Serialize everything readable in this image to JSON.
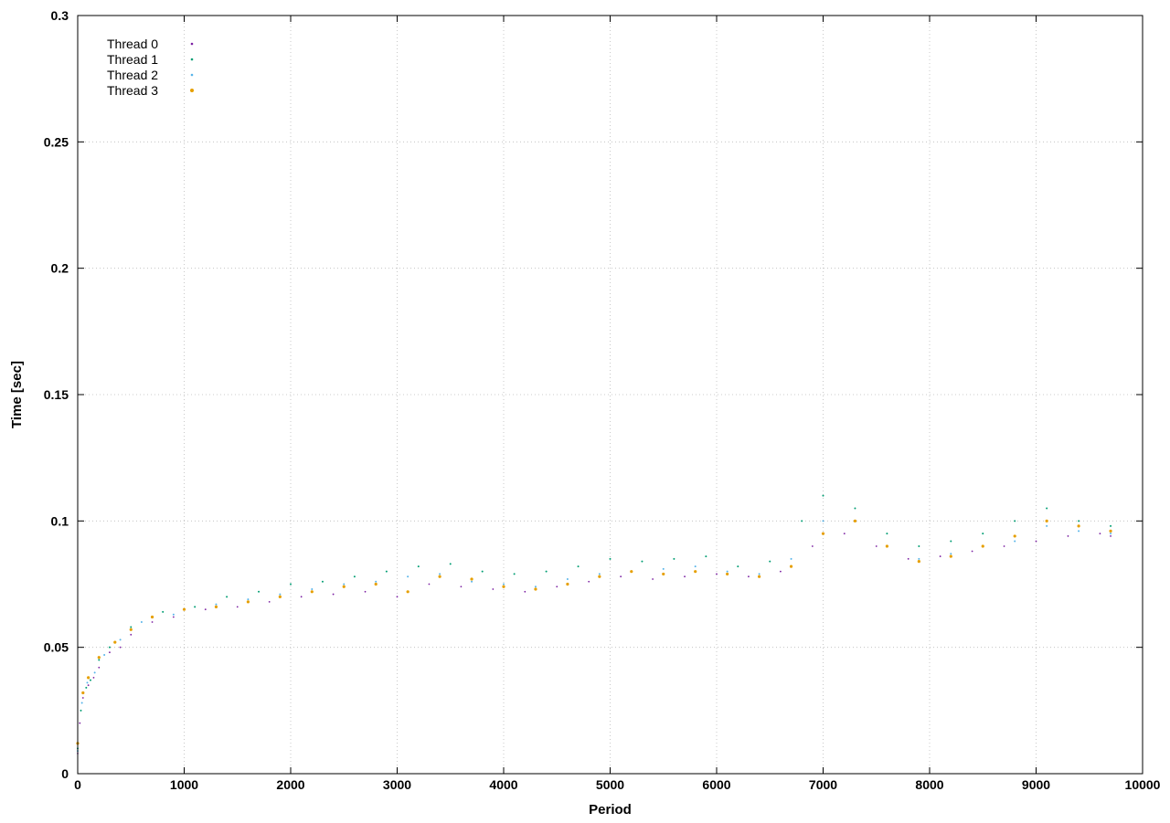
{
  "chart_data": {
    "type": "scatter",
    "title": "",
    "xlabel": "Period",
    "ylabel": "Time [sec]",
    "xlim": [
      0,
      10000
    ],
    "ylim": [
      0,
      0.3
    ],
    "xticks": [
      0,
      1000,
      2000,
      3000,
      4000,
      5000,
      6000,
      7000,
      8000,
      9000,
      10000
    ],
    "yticks": [
      0,
      0.05,
      0.1,
      0.15,
      0.2,
      0.25,
      0.3
    ],
    "xtick_labels": [
      "0",
      "1000",
      "2000",
      "3000",
      "4000",
      "5000",
      "6000",
      "7000",
      "8000",
      "9000",
      "10000"
    ],
    "ytick_labels": [
      "0",
      "0.05",
      "0.1",
      "0.15",
      "0.2",
      "0.25",
      "0.3"
    ],
    "grid": true,
    "legend_position": "top-left",
    "series": [
      {
        "name": "Thread 0",
        "color": "#7b1fa2",
        "points": [
          [
            0,
            0.008
          ],
          [
            20,
            0.02
          ],
          [
            50,
            0.03
          ],
          [
            100,
            0.035
          ],
          [
            150,
            0.038
          ],
          [
            200,
            0.042
          ],
          [
            300,
            0.048
          ],
          [
            400,
            0.05
          ],
          [
            500,
            0.055
          ],
          [
            700,
            0.06
          ],
          [
            900,
            0.062
          ],
          [
            1200,
            0.065
          ],
          [
            1500,
            0.066
          ],
          [
            1800,
            0.068
          ],
          [
            2100,
            0.07
          ],
          [
            2400,
            0.071
          ],
          [
            2700,
            0.072
          ],
          [
            3000,
            0.07
          ],
          [
            3300,
            0.075
          ],
          [
            3600,
            0.074
          ],
          [
            3900,
            0.073
          ],
          [
            4200,
            0.072
          ],
          [
            4500,
            0.074
          ],
          [
            4800,
            0.076
          ],
          [
            5100,
            0.078
          ],
          [
            5400,
            0.077
          ],
          [
            5700,
            0.078
          ],
          [
            6000,
            0.079
          ],
          [
            6300,
            0.078
          ],
          [
            6600,
            0.08
          ],
          [
            6900,
            0.09
          ],
          [
            7200,
            0.095
          ],
          [
            7500,
            0.09
          ],
          [
            7800,
            0.085
          ],
          [
            8100,
            0.086
          ],
          [
            8400,
            0.088
          ],
          [
            8700,
            0.09
          ],
          [
            9000,
            0.092
          ],
          [
            9300,
            0.094
          ],
          [
            9600,
            0.095
          ],
          [
            9700,
            0.094
          ]
        ]
      },
      {
        "name": "Thread 1",
        "color": "#009e73",
        "points": [
          [
            0,
            0.01
          ],
          [
            30,
            0.025
          ],
          [
            80,
            0.034
          ],
          [
            120,
            0.037
          ],
          [
            200,
            0.045
          ],
          [
            300,
            0.05
          ],
          [
            500,
            0.058
          ],
          [
            800,
            0.064
          ],
          [
            1100,
            0.066
          ],
          [
            1400,
            0.07
          ],
          [
            1700,
            0.072
          ],
          [
            2000,
            0.075
          ],
          [
            2300,
            0.076
          ],
          [
            2600,
            0.078
          ],
          [
            2900,
            0.08
          ],
          [
            3200,
            0.082
          ],
          [
            3500,
            0.083
          ],
          [
            3800,
            0.08
          ],
          [
            4100,
            0.079
          ],
          [
            4400,
            0.08
          ],
          [
            4700,
            0.082
          ],
          [
            5000,
            0.085
          ],
          [
            5300,
            0.084
          ],
          [
            5600,
            0.085
          ],
          [
            5900,
            0.086
          ],
          [
            6200,
            0.082
          ],
          [
            6500,
            0.084
          ],
          [
            6800,
            0.1
          ],
          [
            7000,
            0.11
          ],
          [
            7300,
            0.105
          ],
          [
            7600,
            0.095
          ],
          [
            7900,
            0.09
          ],
          [
            8200,
            0.092
          ],
          [
            8500,
            0.095
          ],
          [
            8800,
            0.1
          ],
          [
            9100,
            0.105
          ],
          [
            9400,
            0.1
          ],
          [
            9700,
            0.098
          ]
        ]
      },
      {
        "name": "Thread 2",
        "color": "#56b4e9",
        "points": [
          [
            0,
            0.009
          ],
          [
            40,
            0.028
          ],
          [
            90,
            0.036
          ],
          [
            160,
            0.04
          ],
          [
            250,
            0.047
          ],
          [
            400,
            0.053
          ],
          [
            600,
            0.06
          ],
          [
            900,
            0.063
          ],
          [
            1300,
            0.067
          ],
          [
            1600,
            0.069
          ],
          [
            1900,
            0.071
          ],
          [
            2200,
            0.073
          ],
          [
            2500,
            0.075
          ],
          [
            2800,
            0.076
          ],
          [
            3100,
            0.078
          ],
          [
            3400,
            0.079
          ],
          [
            3700,
            0.076
          ],
          [
            4000,
            0.075
          ],
          [
            4300,
            0.074
          ],
          [
            4600,
            0.077
          ],
          [
            4900,
            0.079
          ],
          [
            5200,
            0.08
          ],
          [
            5500,
            0.081
          ],
          [
            5800,
            0.082
          ],
          [
            6100,
            0.08
          ],
          [
            6400,
            0.079
          ],
          [
            6700,
            0.085
          ],
          [
            7000,
            0.1
          ],
          [
            7300,
            0.1
          ],
          [
            7600,
            0.09
          ],
          [
            7900,
            0.085
          ],
          [
            8200,
            0.087
          ],
          [
            8500,
            0.09
          ],
          [
            8800,
            0.092
          ],
          [
            9100,
            0.098
          ],
          [
            9400,
            0.096
          ],
          [
            9700,
            0.095
          ]
        ]
      },
      {
        "name": "Thread 3",
        "color": "#e69f00",
        "points": [
          [
            0,
            0.012
          ],
          [
            50,
            0.032
          ],
          [
            100,
            0.038
          ],
          [
            200,
            0.046
          ],
          [
            350,
            0.052
          ],
          [
            500,
            0.057
          ],
          [
            700,
            0.062
          ],
          [
            1000,
            0.065
          ],
          [
            1300,
            0.066
          ],
          [
            1600,
            0.068
          ],
          [
            1900,
            0.07
          ],
          [
            2200,
            0.072
          ],
          [
            2500,
            0.074
          ],
          [
            2800,
            0.075
          ],
          [
            3100,
            0.072
          ],
          [
            3400,
            0.078
          ],
          [
            3700,
            0.077
          ],
          [
            4000,
            0.074
          ],
          [
            4300,
            0.073
          ],
          [
            4600,
            0.075
          ],
          [
            4900,
            0.078
          ],
          [
            5200,
            0.08
          ],
          [
            5500,
            0.079
          ],
          [
            5800,
            0.08
          ],
          [
            6100,
            0.079
          ],
          [
            6400,
            0.078
          ],
          [
            6700,
            0.082
          ],
          [
            7000,
            0.095
          ],
          [
            7300,
            0.1
          ],
          [
            7600,
            0.09
          ],
          [
            7900,
            0.084
          ],
          [
            8200,
            0.086
          ],
          [
            8500,
            0.09
          ],
          [
            8800,
            0.094
          ],
          [
            9100,
            0.1
          ],
          [
            9400,
            0.098
          ],
          [
            9700,
            0.096
          ]
        ]
      }
    ]
  }
}
